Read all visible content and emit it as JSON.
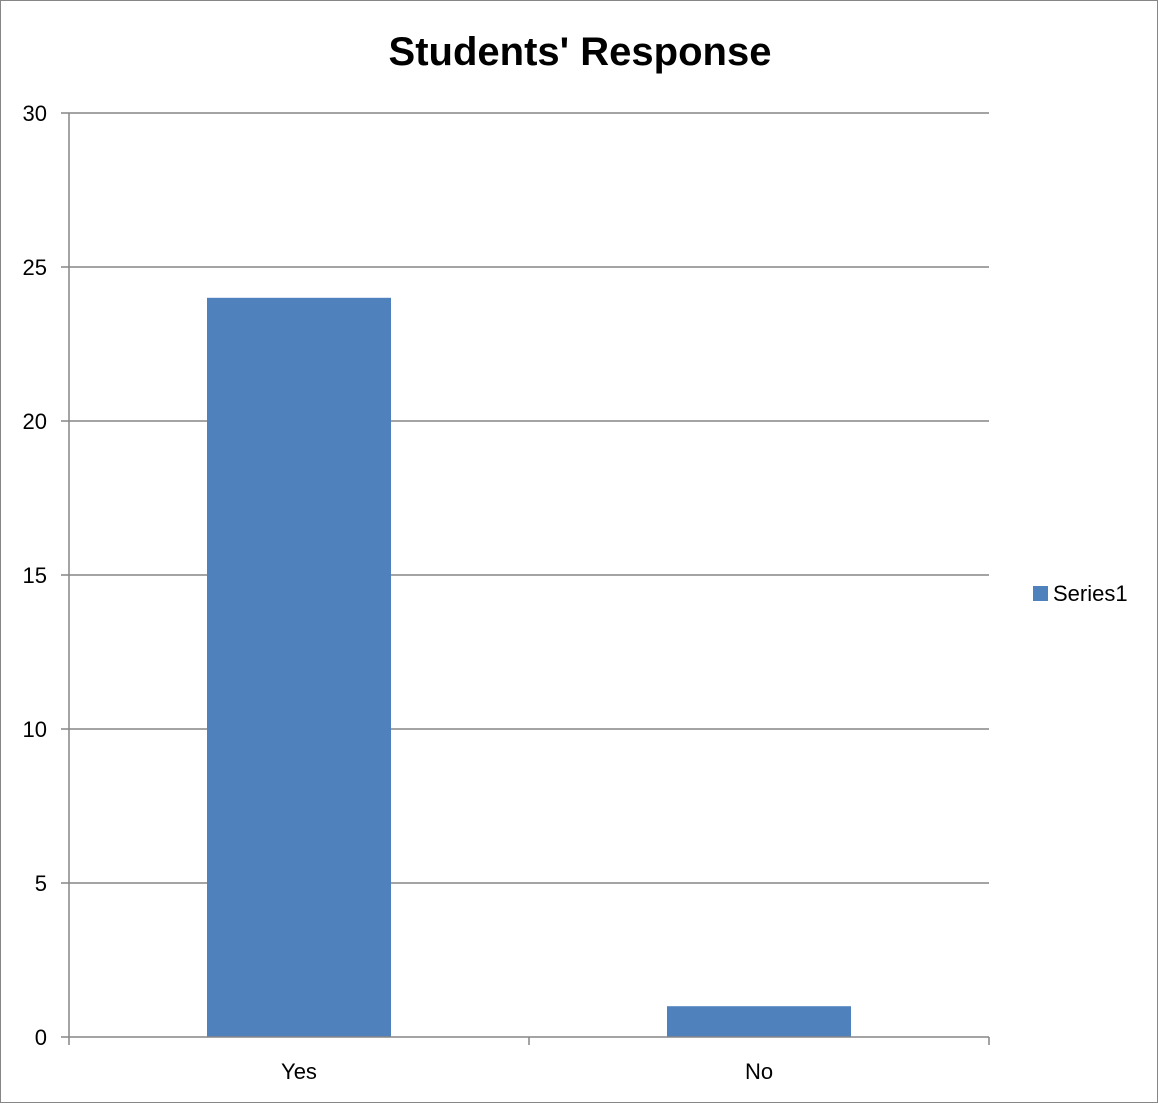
{
  "chart_data": {
    "type": "bar",
    "title": "Students' Response",
    "xlabel": "",
    "ylabel": "",
    "categories": [
      "Yes",
      "No"
    ],
    "series": [
      {
        "name": "Series1",
        "values": [
          24,
          1
        ]
      }
    ],
    "ylim": [
      0,
      30
    ],
    "yticks": [
      0,
      5,
      10,
      15,
      20,
      25,
      30
    ],
    "grid": true,
    "legend": "right",
    "colors": {
      "series1": "#4F81BD",
      "grid": "#868686",
      "axis": "#868686"
    }
  }
}
